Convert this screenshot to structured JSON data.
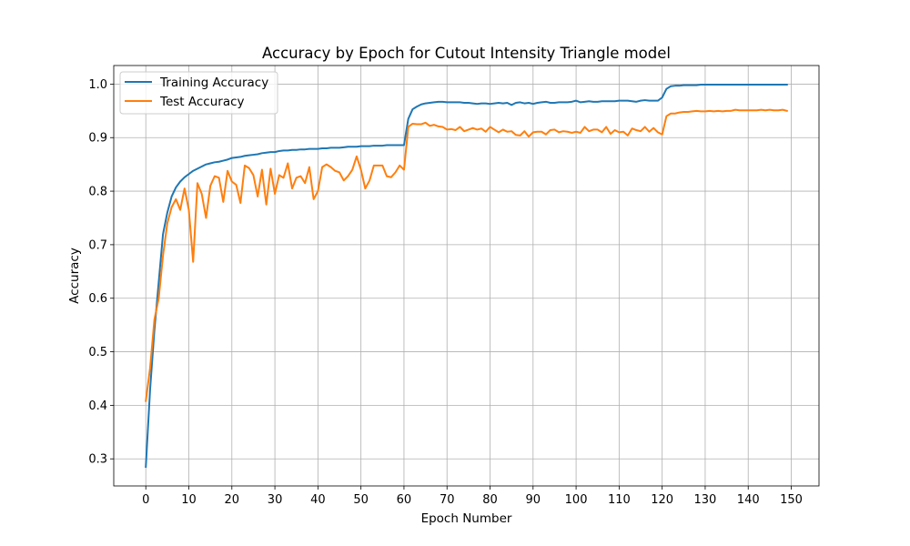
{
  "chart_data": {
    "type": "line",
    "title": "Accuracy by Epoch for Cutout Intensity Triangle model",
    "xlabel": "Epoch Number",
    "ylabel": "Accuracy",
    "xlim": [
      -7.45,
      156.45
    ],
    "ylim": [
      0.2494,
      1.0347
    ],
    "xticks": [
      0,
      10,
      20,
      30,
      40,
      50,
      60,
      70,
      80,
      90,
      100,
      110,
      120,
      130,
      140,
      150
    ],
    "yticks": [
      0.3,
      0.4,
      0.5,
      0.6,
      0.7,
      0.8,
      0.9,
      1.0
    ],
    "ytick_labels": [
      "0.3",
      "0.4",
      "0.5",
      "0.6",
      "0.7",
      "0.8",
      "0.9",
      "1.0"
    ],
    "grid": true,
    "legend_position": "top-left",
    "x": [
      0,
      1,
      2,
      3,
      4,
      5,
      6,
      7,
      8,
      9,
      10,
      11,
      12,
      13,
      14,
      15,
      16,
      17,
      18,
      19,
      20,
      21,
      22,
      23,
      24,
      25,
      26,
      27,
      28,
      29,
      30,
      31,
      32,
      33,
      34,
      35,
      36,
      37,
      38,
      39,
      40,
      41,
      42,
      43,
      44,
      45,
      46,
      47,
      48,
      49,
      50,
      51,
      52,
      53,
      54,
      55,
      56,
      57,
      58,
      59,
      60,
      61,
      62,
      63,
      64,
      65,
      66,
      67,
      68,
      69,
      70,
      71,
      72,
      73,
      74,
      75,
      76,
      77,
      78,
      79,
      80,
      81,
      82,
      83,
      84,
      85,
      86,
      87,
      88,
      89,
      90,
      91,
      92,
      93,
      94,
      95,
      96,
      97,
      98,
      99,
      100,
      101,
      102,
      103,
      104,
      105,
      106,
      107,
      108,
      109,
      110,
      111,
      112,
      113,
      114,
      115,
      116,
      117,
      118,
      119,
      120,
      121,
      122,
      123,
      124,
      125,
      126,
      127,
      128,
      129,
      130,
      131,
      132,
      133,
      134,
      135,
      136,
      137,
      138,
      139,
      140,
      141,
      142,
      143,
      144,
      145,
      146,
      147,
      148,
      149
    ],
    "series": [
      {
        "name": "Training Accuracy",
        "color": "#1f77b4",
        "values": [
          0.285,
          0.43,
          0.54,
          0.63,
          0.72,
          0.76,
          0.79,
          0.807,
          0.818,
          0.826,
          0.832,
          0.838,
          0.842,
          0.846,
          0.85,
          0.852,
          0.854,
          0.855,
          0.857,
          0.859,
          0.862,
          0.863,
          0.864,
          0.866,
          0.867,
          0.868,
          0.869,
          0.871,
          0.872,
          0.873,
          0.873,
          0.875,
          0.876,
          0.876,
          0.877,
          0.877,
          0.878,
          0.878,
          0.879,
          0.879,
          0.879,
          0.88,
          0.88,
          0.881,
          0.881,
          0.881,
          0.882,
          0.883,
          0.883,
          0.883,
          0.884,
          0.884,
          0.884,
          0.885,
          0.885,
          0.885,
          0.886,
          0.886,
          0.886,
          0.886,
          0.886,
          0.935,
          0.953,
          0.958,
          0.962,
          0.964,
          0.965,
          0.966,
          0.967,
          0.967,
          0.966,
          0.966,
          0.966,
          0.966,
          0.965,
          0.965,
          0.964,
          0.963,
          0.964,
          0.964,
          0.963,
          0.964,
          0.965,
          0.964,
          0.965,
          0.961,
          0.965,
          0.966,
          0.964,
          0.965,
          0.963,
          0.965,
          0.966,
          0.967,
          0.965,
          0.965,
          0.966,
          0.966,
          0.966,
          0.967,
          0.969,
          0.966,
          0.967,
          0.968,
          0.967,
          0.967,
          0.968,
          0.968,
          0.968,
          0.968,
          0.969,
          0.969,
          0.969,
          0.968,
          0.967,
          0.969,
          0.97,
          0.969,
          0.969,
          0.969,
          0.975,
          0.991,
          0.996,
          0.997,
          0.997,
          0.998,
          0.998,
          0.998,
          0.998,
          0.999,
          0.999,
          0.999,
          0.999,
          0.999,
          0.999,
          0.999,
          0.999,
          0.999,
          0.999,
          0.999,
          0.999,
          0.999,
          0.999,
          0.999,
          0.999,
          0.999,
          0.999,
          0.999,
          0.999,
          0.999
        ]
      },
      {
        "name": "Test Accuracy",
        "color": "#ff7f0e",
        "values": [
          0.408,
          0.47,
          0.56,
          0.6,
          0.68,
          0.74,
          0.77,
          0.785,
          0.765,
          0.805,
          0.765,
          0.668,
          0.815,
          0.795,
          0.75,
          0.81,
          0.828,
          0.825,
          0.78,
          0.838,
          0.818,
          0.812,
          0.778,
          0.848,
          0.843,
          0.83,
          0.79,
          0.84,
          0.775,
          0.842,
          0.795,
          0.83,
          0.825,
          0.852,
          0.805,
          0.825,
          0.828,
          0.815,
          0.845,
          0.785,
          0.8,
          0.845,
          0.85,
          0.845,
          0.838,
          0.835,
          0.82,
          0.828,
          0.84,
          0.865,
          0.84,
          0.805,
          0.82,
          0.848,
          0.848,
          0.848,
          0.828,
          0.826,
          0.835,
          0.848,
          0.84,
          0.92,
          0.926,
          0.925,
          0.925,
          0.928,
          0.922,
          0.924,
          0.921,
          0.92,
          0.915,
          0.916,
          0.914,
          0.92,
          0.912,
          0.915,
          0.918,
          0.915,
          0.917,
          0.911,
          0.92,
          0.915,
          0.91,
          0.915,
          0.911,
          0.912,
          0.905,
          0.904,
          0.912,
          0.902,
          0.91,
          0.911,
          0.911,
          0.906,
          0.914,
          0.915,
          0.91,
          0.912,
          0.911,
          0.909,
          0.911,
          0.909,
          0.92,
          0.912,
          0.915,
          0.915,
          0.91,
          0.92,
          0.907,
          0.914,
          0.91,
          0.911,
          0.904,
          0.917,
          0.914,
          0.912,
          0.92,
          0.911,
          0.918,
          0.91,
          0.906,
          0.94,
          0.945,
          0.945,
          0.947,
          0.948,
          0.948,
          0.949,
          0.95,
          0.949,
          0.949,
          0.95,
          0.949,
          0.95,
          0.949,
          0.95,
          0.95,
          0.952,
          0.951,
          0.951,
          0.951,
          0.951,
          0.951,
          0.952,
          0.951,
          0.952,
          0.951,
          0.951,
          0.952,
          0.95
        ]
      }
    ]
  }
}
